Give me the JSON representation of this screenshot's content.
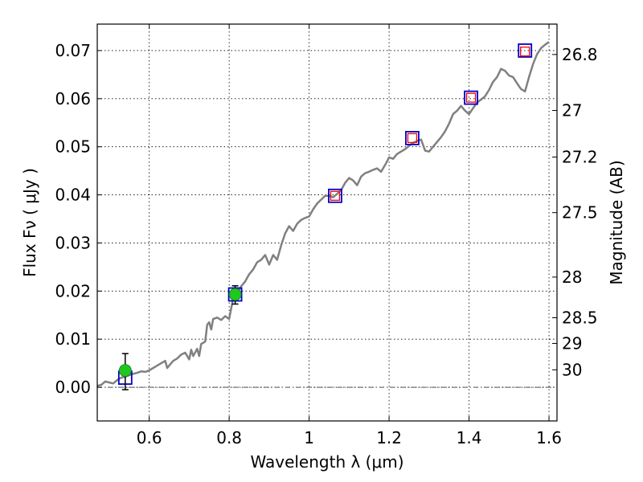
{
  "chart_data": {
    "type": "scatter",
    "xlabel": "Wavelength  λ (μm)",
    "ylabel": "Flux  Fν  ( μJy )",
    "ylabel_right": "Magnitude (AB)",
    "xlim": [
      0.47,
      1.62
    ],
    "ylim": [
      -0.007,
      0.0755
    ],
    "grid": true,
    "x_ticks": [
      {
        "value": 0.6,
        "label": "0.6"
      },
      {
        "value": 0.8,
        "label": "0.8"
      },
      {
        "value": 1.0,
        "label": "1"
      },
      {
        "value": 1.2,
        "label": "1.2"
      },
      {
        "value": 1.4,
        "label": "1.4"
      },
      {
        "value": 1.6,
        "label": "1.6"
      }
    ],
    "y_ticks": [
      {
        "value": 0.0,
        "label": "0.00"
      },
      {
        "value": 0.01,
        "label": "0.01"
      },
      {
        "value": 0.02,
        "label": "0.02"
      },
      {
        "value": 0.03,
        "label": "0.03"
      },
      {
        "value": 0.04,
        "label": "0.04"
      },
      {
        "value": 0.05,
        "label": "0.05"
      },
      {
        "value": 0.06,
        "label": "0.06"
      },
      {
        "value": 0.07,
        "label": "0.07"
      }
    ],
    "right_ticks": [
      {
        "mag": 26.8,
        "label": "26.8"
      },
      {
        "mag": 27.0,
        "label": "27"
      },
      {
        "mag": 27.2,
        "label": "27.2"
      },
      {
        "mag": 27.5,
        "label": "27.5"
      },
      {
        "mag": 28.0,
        "label": "28"
      },
      {
        "mag": 28.5,
        "label": "28.5"
      },
      {
        "mag": 29.0,
        "label": "29"
      },
      {
        "mag": 30.0,
        "label": "30"
      }
    ],
    "series": [
      {
        "kind": "spectrum-line",
        "color": "#808080",
        "points": [
          [
            0.47,
            0.0003
          ],
          [
            0.48,
            0.0005
          ],
          [
            0.49,
            0.0012
          ],
          [
            0.5,
            0.001
          ],
          [
            0.51,
            0.0008
          ],
          [
            0.52,
            0.0015
          ],
          [
            0.53,
            0.002
          ],
          [
            0.54,
            0.0022
          ],
          [
            0.55,
            0.0025
          ],
          [
            0.56,
            0.0028
          ],
          [
            0.57,
            0.003
          ],
          [
            0.58,
            0.0033
          ],
          [
            0.59,
            0.0032
          ],
          [
            0.6,
            0.0035
          ],
          [
            0.61,
            0.004
          ],
          [
            0.62,
            0.0045
          ],
          [
            0.63,
            0.005
          ],
          [
            0.64,
            0.0055
          ],
          [
            0.645,
            0.004
          ],
          [
            0.65,
            0.0045
          ],
          [
            0.66,
            0.0055
          ],
          [
            0.67,
            0.006
          ],
          [
            0.68,
            0.0068
          ],
          [
            0.69,
            0.0072
          ],
          [
            0.7,
            0.0058
          ],
          [
            0.705,
            0.0078
          ],
          [
            0.71,
            0.0065
          ],
          [
            0.72,
            0.008
          ],
          [
            0.725,
            0.0065
          ],
          [
            0.73,
            0.009
          ],
          [
            0.74,
            0.0095
          ],
          [
            0.745,
            0.013
          ],
          [
            0.75,
            0.0135
          ],
          [
            0.755,
            0.012
          ],
          [
            0.76,
            0.0142
          ],
          [
            0.77,
            0.0145
          ],
          [
            0.78,
            0.014
          ],
          [
            0.79,
            0.0148
          ],
          [
            0.8,
            0.0142
          ],
          [
            0.81,
            0.0185
          ],
          [
            0.82,
            0.0195
          ],
          [
            0.83,
            0.021
          ],
          [
            0.84,
            0.022
          ],
          [
            0.85,
            0.0235
          ],
          [
            0.86,
            0.0245
          ],
          [
            0.87,
            0.026
          ],
          [
            0.88,
            0.0265
          ],
          [
            0.89,
            0.0275
          ],
          [
            0.9,
            0.0255
          ],
          [
            0.91,
            0.0275
          ],
          [
            0.92,
            0.0265
          ],
          [
            0.93,
            0.0295
          ],
          [
            0.94,
            0.032
          ],
          [
            0.95,
            0.0335
          ],
          [
            0.96,
            0.0325
          ],
          [
            0.97,
            0.034
          ],
          [
            0.98,
            0.0348
          ],
          [
            0.99,
            0.0352
          ],
          [
            1.0,
            0.0355
          ],
          [
            1.01,
            0.037
          ],
          [
            1.02,
            0.0382
          ],
          [
            1.03,
            0.039
          ],
          [
            1.04,
            0.0398
          ],
          [
            1.05,
            0.0398
          ],
          [
            1.06,
            0.0395
          ],
          [
            1.07,
            0.0402
          ],
          [
            1.08,
            0.041
          ],
          [
            1.09,
            0.0425
          ],
          [
            1.1,
            0.0435
          ],
          [
            1.11,
            0.043
          ],
          [
            1.12,
            0.042
          ],
          [
            1.13,
            0.0438
          ],
          [
            1.14,
            0.0445
          ],
          [
            1.15,
            0.0448
          ],
          [
            1.16,
            0.0452
          ],
          [
            1.17,
            0.0455
          ],
          [
            1.18,
            0.0448
          ],
          [
            1.19,
            0.0462
          ],
          [
            1.2,
            0.0478
          ],
          [
            1.21,
            0.0475
          ],
          [
            1.22,
            0.0485
          ],
          [
            1.23,
            0.049
          ],
          [
            1.24,
            0.0495
          ],
          [
            1.25,
            0.0502
          ],
          [
            1.26,
            0.0508
          ],
          [
            1.27,
            0.0512
          ],
          [
            1.28,
            0.0515
          ],
          [
            1.29,
            0.0492
          ],
          [
            1.3,
            0.049
          ],
          [
            1.31,
            0.05
          ],
          [
            1.32,
            0.051
          ],
          [
            1.33,
            0.052
          ],
          [
            1.34,
            0.0532
          ],
          [
            1.35,
            0.0548
          ],
          [
            1.36,
            0.0568
          ],
          [
            1.37,
            0.0575
          ],
          [
            1.38,
            0.0585
          ],
          [
            1.39,
            0.0575
          ],
          [
            1.4,
            0.0568
          ],
          [
            1.41,
            0.058
          ],
          [
            1.42,
            0.0592
          ],
          [
            1.43,
            0.0598
          ],
          [
            1.44,
            0.0605
          ],
          [
            1.45,
            0.0618
          ],
          [
            1.46,
            0.0635
          ],
          [
            1.47,
            0.0645
          ],
          [
            1.48,
            0.0662
          ],
          [
            1.49,
            0.0658
          ],
          [
            1.5,
            0.0648
          ],
          [
            1.51,
            0.0645
          ],
          [
            1.52,
            0.0632
          ],
          [
            1.53,
            0.062
          ],
          [
            1.54,
            0.0615
          ],
          [
            1.55,
            0.0645
          ],
          [
            1.56,
            0.0672
          ],
          [
            1.57,
            0.0692
          ],
          [
            1.58,
            0.0705
          ],
          [
            1.59,
            0.0712
          ],
          [
            1.6,
            0.0718
          ]
        ]
      },
      {
        "kind": "blue-squares",
        "color": "#0000cc",
        "points": [
          [
            0.54,
            0.002
          ],
          [
            0.815,
            0.0193
          ],
          [
            1.065,
            0.0398
          ],
          [
            1.258,
            0.0518
          ],
          [
            1.405,
            0.0602
          ],
          [
            1.54,
            0.07
          ]
        ]
      },
      {
        "kind": "red-squares",
        "color": "#ff0000",
        "points": [
          [
            1.065,
            0.0398
          ],
          [
            1.258,
            0.0518
          ],
          [
            1.405,
            0.0602
          ],
          [
            1.54,
            0.0698
          ]
        ]
      },
      {
        "kind": "green-points",
        "color": "#1ec81e",
        "points": [
          {
            "x": 0.54,
            "y": 0.0035,
            "yerr_low": 0.004,
            "yerr_high": 0.0035
          },
          {
            "x": 0.815,
            "y": 0.0193,
            "yerr_low": 0.002,
            "yerr_high": 0.0018
          }
        ]
      }
    ],
    "zero_line_color": "#555555"
  }
}
